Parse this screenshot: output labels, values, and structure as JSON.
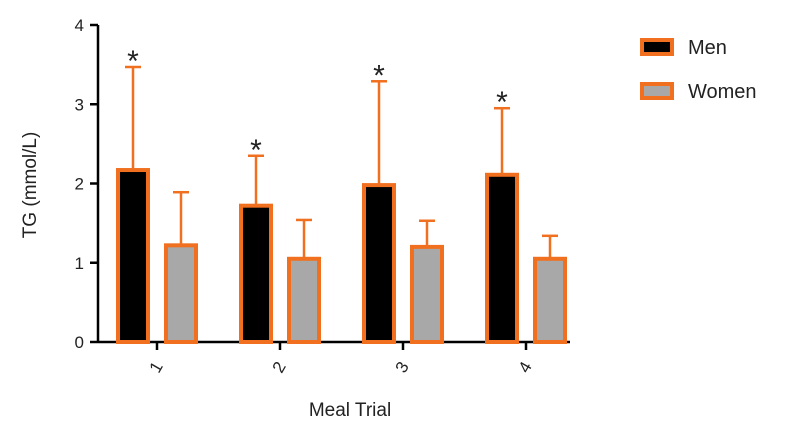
{
  "chart_data": {
    "type": "bar",
    "title": "",
    "xlabel": "Meal Trial",
    "ylabel": "TG (mmol/L)",
    "categories": [
      "1",
      "2",
      "3",
      "4"
    ],
    "ylim": [
      0,
      4
    ],
    "yticks": [
      "0",
      "1",
      "2",
      "3",
      "4"
    ],
    "legend_position": "top-right",
    "series": [
      {
        "name": "Men",
        "values": [
          2.17,
          1.72,
          1.98,
          2.11
        ],
        "error_upper": [
          3.47,
          2.35,
          3.29,
          2.95
        ],
        "color": "#000000",
        "edge_color": "#f07020"
      },
      {
        "name": "Women",
        "values": [
          1.22,
          1.05,
          1.2,
          1.05
        ],
        "error_upper": [
          1.89,
          1.54,
          1.53,
          1.34
        ],
        "color": "#a8a8a8",
        "edge_color": "#f07020"
      }
    ],
    "annotations": [
      {
        "category": "1",
        "series": "Men",
        "text": "*"
      },
      {
        "category": "2",
        "series": "Men",
        "text": "*"
      },
      {
        "category": "3",
        "series": "Men",
        "text": "*"
      },
      {
        "category": "4",
        "series": "Men",
        "text": "*"
      }
    ],
    "error_color": "#f07020"
  }
}
